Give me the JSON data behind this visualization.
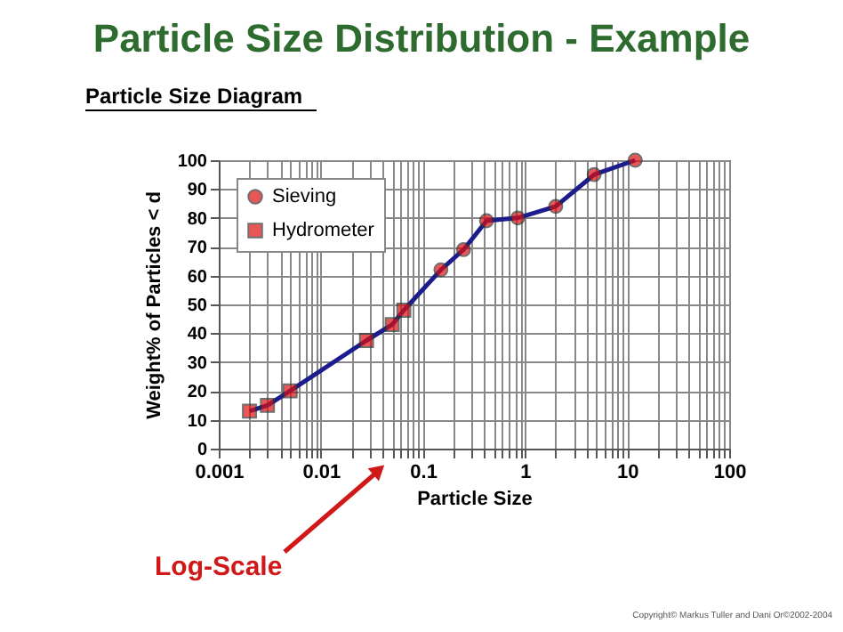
{
  "chart_data": {
    "type": "scatter",
    "title": "Particle Size Distribution - Example",
    "subtitle": "Particle Size Diagram",
    "xlabel": "Particle Size",
    "ylabel": "Weight% of Particles < d",
    "annotations": [
      "Log-Scale",
      "Copyright© Markus Tuller and Dani Or©2002-2004"
    ],
    "log": "x",
    "grid": true,
    "legend": "top left",
    "xlim": [
      0.001,
      100
    ],
    "ylim": [
      0,
      100
    ],
    "yticks": [
      0,
      10,
      20,
      30,
      40,
      50,
      60,
      70,
      80,
      90,
      100
    ],
    "xticks": [
      0.001,
      {
        "value": 0.002,
        "label": null
      },
      {
        "value": 0.003,
        "label": null
      },
      {
        "value": 0.004,
        "label": null
      },
      {
        "value": 0.005,
        "label": null
      },
      {
        "value": 0.006,
        "label": null
      },
      {
        "value": 0.007,
        "label": null
      },
      {
        "value": 0.008,
        "label": null
      },
      {
        "value": 0.009,
        "label": null
      },
      0.01,
      {
        "value": 0.02,
        "label": null
      },
      {
        "value": 0.03,
        "label": null
      },
      {
        "value": 0.04,
        "label": null
      },
      {
        "value": 0.05,
        "label": null
      },
      {
        "value": 0.06,
        "label": null
      },
      {
        "value": 0.07,
        "label": null
      },
      {
        "value": 0.08,
        "label": null
      },
      {
        "value": 0.09,
        "label": null
      },
      0.1,
      {
        "value": 0.2,
        "label": null
      },
      {
        "value": 0.3,
        "label": null
      },
      {
        "value": 0.4,
        "label": null
      },
      {
        "value": 0.5,
        "label": null
      },
      {
        "value": 0.6,
        "label": null
      },
      {
        "value": 0.7,
        "label": null
      },
      {
        "value": 0.8,
        "label": null
      },
      {
        "value": 0.9,
        "label": null
      },
      1,
      {
        "value": 2,
        "label": null
      },
      {
        "value": 3,
        "label": null
      },
      {
        "value": 4,
        "label": null
      },
      {
        "value": 5,
        "label": null
      },
      {
        "value": 6,
        "label": null
      },
      {
        "value": 7,
        "label": null
      },
      {
        "value": 8,
        "label": null
      },
      {
        "value": 9,
        "label": null
      },
      10,
      {
        "value": 20,
        "label": null
      },
      {
        "value": 30,
        "label": null
      },
      {
        "value": 40,
        "label": null
      },
      {
        "value": 50,
        "label": null
      },
      {
        "value": 60,
        "label": null
      },
      {
        "value": 70,
        "label": null
      },
      {
        "value": 80,
        "label": null
      },
      {
        "value": 90,
        "label": null
      },
      100
    ],
    "series": [
      {
        "type": "line",
        "color": "#1c1c8c",
        "marker": "none",
        "x": [
          0.002,
          0.003,
          0.005,
          0.028,
          0.05,
          0.065,
          0.15,
          0.25,
          0.42,
          0.85,
          2,
          4.75,
          12
        ],
        "values": [
          13,
          15,
          20,
          37.5,
          43,
          48,
          62,
          69,
          79,
          80,
          84,
          95,
          100
        ]
      },
      {
        "name": "Sieving",
        "color": "#e01010",
        "marker": "circle",
        "x": [
          0.15,
          0.25,
          0.42,
          0.85,
          2,
          4.75,
          12
        ],
        "values": [
          62,
          69,
          79,
          80,
          84,
          95,
          100
        ]
      },
      {
        "name": "Hydrometer",
        "color": "#e01010",
        "marker": "square",
        "x": [
          0.002,
          0.003,
          0.005,
          0.028,
          0.05,
          0.065
        ],
        "values": [
          13,
          15,
          20,
          37.5,
          43,
          48
        ]
      }
    ]
  }
}
